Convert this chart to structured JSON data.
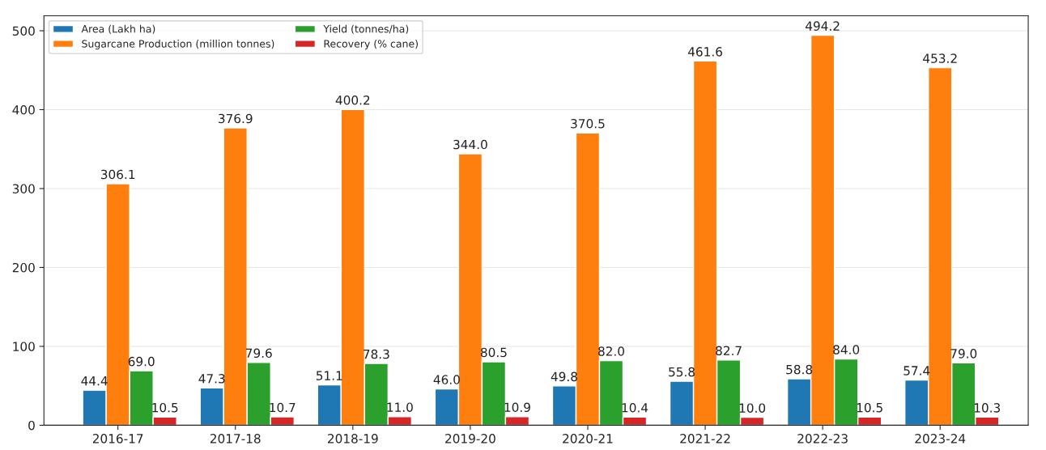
{
  "chart_data": {
    "type": "bar",
    "categories": [
      "2016-17",
      "2017-18",
      "2018-19",
      "2019-20",
      "2020-21",
      "2021-22",
      "2022-23",
      "2023-24"
    ],
    "series": [
      {
        "name": "Area (Lakh ha)",
        "color": "#1f77b4",
        "values": [
          44.4,
          47.3,
          51.1,
          46.0,
          49.8,
          55.8,
          58.8,
          57.4
        ],
        "value_labels": [
          "44.4",
          "47.3",
          "51.1",
          "46.0",
          "49.8",
          "55.8",
          "58.8",
          "57.4"
        ]
      },
      {
        "name": "Sugarcane Production (million tonnes)",
        "color": "#ff7f0e",
        "values": [
          306.1,
          376.9,
          400.2,
          344.0,
          370.5,
          461.6,
          494.2,
          453.2
        ],
        "value_labels": [
          "306.1",
          "376.9",
          "400.2",
          "344.0",
          "370.5",
          "461.6",
          "494.2",
          "453.2"
        ]
      },
      {
        "name": "Yield (tonnes/ha)",
        "color": "#2ca02c",
        "values": [
          69.0,
          79.6,
          78.3,
          80.5,
          82.0,
          82.7,
          84.0,
          79.0
        ],
        "value_labels": [
          "69.0",
          "79.6",
          "78.3",
          "80.5",
          "82.0",
          "82.7",
          "84.0",
          "79.0"
        ]
      },
      {
        "name": "Recovery (% cane)",
        "color": "#d62728",
        "values": [
          10.5,
          10.7,
          11.0,
          10.9,
          10.4,
          10.0,
          10.5,
          10.3
        ],
        "value_labels": [
          "10.5",
          "10.7",
          "11.0",
          "10.9",
          "10.4",
          "10.0",
          "10.5",
          "10.3"
        ]
      }
    ],
    "ylim": [
      0,
      519
    ],
    "yticks": [
      0,
      100,
      200,
      300,
      400,
      500
    ],
    "grid": "y",
    "legend": "top left"
  }
}
